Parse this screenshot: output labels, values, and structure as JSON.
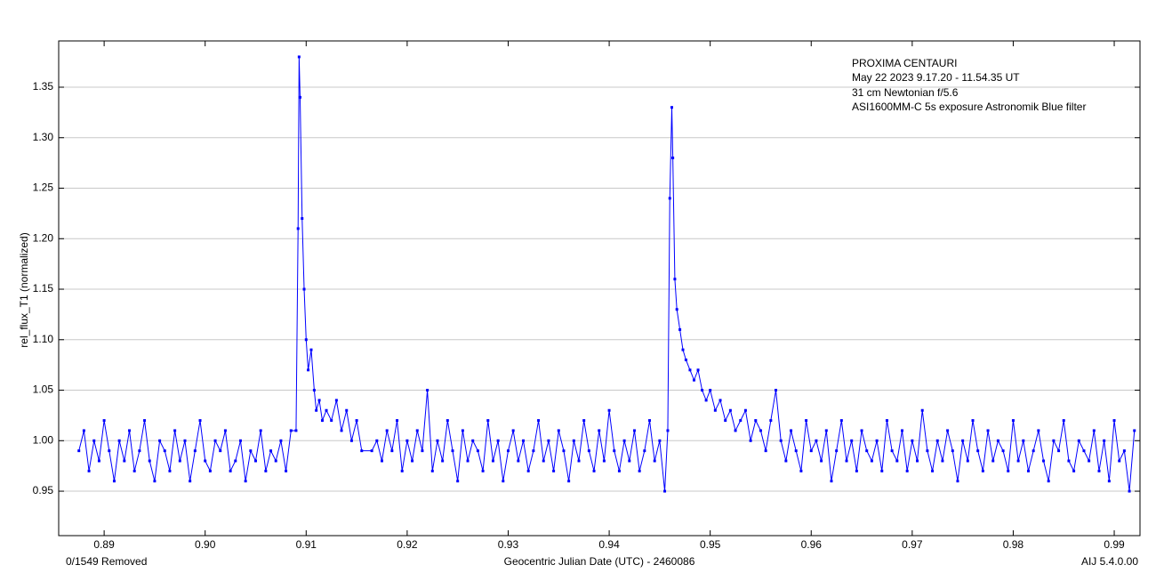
{
  "chart_data": {
    "type": "line",
    "annotations": [
      "PROXIMA CENTAURI",
      "May 22 2023   9.17.20 - 11.54.35 UT",
      "31 cm Newtonian  f/5.6",
      "ASI1600MM-C  5s exposure  Astronomik Blue filter"
    ],
    "xlabel": "Geocentric Julian Date (UTC) - 2460086",
    "ylabel": "rel_flux_T1 (normalized)",
    "footer_left": "0/1549 Removed",
    "footer_right": "AIJ 5.4.0.00",
    "xlim": [
      0.8855,
      0.99255
    ],
    "ylim": [
      0.906,
      1.3958
    ],
    "xticks": [
      0.89,
      {
        "value": 0.9,
        "label": "0.90"
      },
      0.91,
      0.92,
      0.93,
      0.94,
      0.95,
      0.96,
      0.97,
      0.98,
      0.99
    ],
    "yticks": [
      0.95,
      {
        "value": 1.0,
        "label": "1.00"
      },
      1.05,
      {
        "value": 1.1,
        "label": "1.10"
      },
      1.15,
      {
        "value": 1.2,
        "label": "1.20"
      },
      1.25,
      {
        "value": 1.3,
        "label": "1.30"
      },
      1.35
    ],
    "grid": true,
    "series": [
      {
        "name": "rel_flux_T1",
        "color": "#0000ff",
        "x": [
          0.8875,
          0.888,
          0.8885,
          0.889,
          0.8895,
          0.89,
          0.8905,
          0.891,
          0.8915,
          0.892,
          0.8925,
          0.893,
          0.8935,
          0.894,
          0.8945,
          0.895,
          0.8955,
          0.896,
          0.8965,
          0.897,
          0.8975,
          0.898,
          0.8985,
          0.899,
          0.8995,
          0.9,
          0.9005,
          0.901,
          0.9015,
          0.902,
          0.9025,
          0.903,
          0.9035,
          0.904,
          0.9045,
          0.905,
          0.9055,
          0.906,
          0.9065,
          0.907,
          0.9075,
          0.908,
          0.9085,
          0.909,
          0.9092,
          0.9093,
          0.9094,
          0.9096,
          0.9098,
          0.91,
          0.9102,
          0.9105,
          0.9108,
          0.911,
          0.9113,
          0.9116,
          0.912,
          0.9125,
          0.913,
          0.9135,
          0.914,
          0.9145,
          0.915,
          0.9155,
          0.9165,
          0.917,
          0.9175,
          0.918,
          0.9185,
          0.919,
          0.9195,
          0.92,
          0.9205,
          0.921,
          0.9215,
          0.922,
          0.9225,
          0.923,
          0.9235,
          0.924,
          0.9245,
          0.925,
          0.9255,
          0.926,
          0.9265,
          0.927,
          0.9275,
          0.928,
          0.9285,
          0.929,
          0.9295,
          0.93,
          0.9305,
          0.931,
          0.9315,
          0.932,
          0.9325,
          0.933,
          0.9335,
          0.934,
          0.9345,
          0.935,
          0.9355,
          0.936,
          0.9365,
          0.937,
          0.9375,
          0.938,
          0.9385,
          0.939,
          0.9395,
          0.94,
          0.9405,
          0.941,
          0.9415,
          0.942,
          0.9425,
          0.943,
          0.9435,
          0.944,
          0.9445,
          0.945,
          0.9455,
          0.9458,
          0.946,
          0.9462,
          0.9463,
          0.9465,
          0.9467,
          0.947,
          0.9473,
          0.9476,
          0.948,
          0.9484,
          0.9488,
          0.9492,
          0.9496,
          0.95,
          0.9505,
          0.951,
          0.9515,
          0.952,
          0.9525,
          0.953,
          0.9535,
          0.954,
          0.9545,
          0.955,
          0.9555,
          0.956,
          0.9565,
          0.957,
          0.9575,
          0.958,
          0.9585,
          0.959,
          0.9595,
          0.96,
          0.9605,
          0.961,
          0.9615,
          0.962,
          0.9625,
          0.963,
          0.9635,
          0.964,
          0.9645,
          0.965,
          0.9655,
          0.966,
          0.9665,
          0.967,
          0.9675,
          0.968,
          0.9685,
          0.969,
          0.9695,
          0.97,
          0.9705,
          0.971,
          0.9715,
          0.972,
          0.9725,
          0.973,
          0.9735,
          0.974,
          0.9745,
          0.975,
          0.9755,
          0.976,
          0.9765,
          0.977,
          0.9775,
          0.978,
          0.9785,
          0.979,
          0.9795,
          0.98,
          0.9805,
          0.981,
          0.9815,
          0.982,
          0.9825,
          0.983,
          0.9835,
          0.984,
          0.9845,
          0.985,
          0.9855,
          0.986,
          0.9865,
          0.987,
          0.9875,
          0.988,
          0.9885,
          0.989,
          0.9895,
          0.99,
          0.9905,
          0.991,
          0.9915,
          0.992
        ],
        "values": [
          0.99,
          1.01,
          0.97,
          1.0,
          0.98,
          1.02,
          0.99,
          0.96,
          1.0,
          0.98,
          1.01,
          0.97,
          0.99,
          1.02,
          0.98,
          0.96,
          1.0,
          0.99,
          0.97,
          1.01,
          0.98,
          1.0,
          0.96,
          0.99,
          1.02,
          0.98,
          0.97,
          1.0,
          0.99,
          1.01,
          0.97,
          0.98,
          1.0,
          0.96,
          0.99,
          0.98,
          1.01,
          0.97,
          0.99,
          0.98,
          1.0,
          0.97,
          1.01,
          1.01,
          1.21,
          1.38,
          1.34,
          1.22,
          1.15,
          1.1,
          1.07,
          1.09,
          1.05,
          1.03,
          1.04,
          1.02,
          1.03,
          1.02,
          1.04,
          1.01,
          1.03,
          1.0,
          1.02,
          0.99,
          0.99,
          1.0,
          0.98,
          1.01,
          0.99,
          1.02,
          0.97,
          1.0,
          0.98,
          1.01,
          0.99,
          1.05,
          0.97,
          1.0,
          0.98,
          1.02,
          0.99,
          0.96,
          1.01,
          0.98,
          1.0,
          0.99,
          0.97,
          1.02,
          0.98,
          1.0,
          0.96,
          0.99,
          1.01,
          0.98,
          1.0,
          0.97,
          0.99,
          1.02,
          0.98,
          1.0,
          0.97,
          1.01,
          0.99,
          0.96,
          1.0,
          0.98,
          1.02,
          0.99,
          0.97,
          1.01,
          0.98,
          1.03,
          0.99,
          0.97,
          1.0,
          0.98,
          1.01,
          0.97,
          0.99,
          1.02,
          0.98,
          1.0,
          0.95,
          1.01,
          1.24,
          1.33,
          1.28,
          1.16,
          1.13,
          1.11,
          1.09,
          1.08,
          1.07,
          1.06,
          1.07,
          1.05,
          1.04,
          1.05,
          1.03,
          1.04,
          1.02,
          1.03,
          1.01,
          1.02,
          1.03,
          1.0,
          1.02,
          1.01,
          0.99,
          1.02,
          1.05,
          1.0,
          0.98,
          1.01,
          0.99,
          0.97,
          1.02,
          0.99,
          1.0,
          0.98,
          1.01,
          0.96,
          0.99,
          1.02,
          0.98,
          1.0,
          0.97,
          1.01,
          0.99,
          0.98,
          1.0,
          0.97,
          1.02,
          0.99,
          0.98,
          1.01,
          0.97,
          1.0,
          0.98,
          1.03,
          0.99,
          0.97,
          1.0,
          0.98,
          1.01,
          0.99,
          0.96,
          1.0,
          0.98,
          1.02,
          0.99,
          0.97,
          1.01,
          0.98,
          1.0,
          0.99,
          0.97,
          1.02,
          0.98,
          1.0,
          0.97,
          0.99,
          1.01,
          0.98,
          0.96,
          1.0,
          0.99,
          1.02,
          0.98,
          0.97,
          1.0,
          0.99,
          0.98,
          1.01,
          0.97,
          1.0,
          0.96,
          1.02,
          0.98,
          0.99,
          0.95,
          1.01
        ]
      }
    ]
  }
}
